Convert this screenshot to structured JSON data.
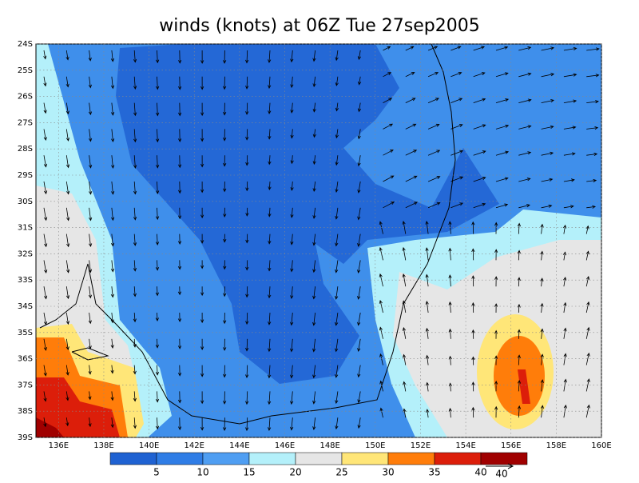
{
  "map": {
    "title": "winds (knots) at 06Z Tue 27sep2005",
    "lat_range": [
      -39,
      -24
    ],
    "lon_range": [
      135,
      160
    ],
    "lat_ticks": [
      {
        "value": -24,
        "label": "24S"
      },
      {
        "value": -25,
        "label": "25S"
      },
      {
        "value": -26,
        "label": "26S"
      },
      {
        "value": -27,
        "label": "27S"
      },
      {
        "value": -28,
        "label": "28S"
      },
      {
        "value": -29,
        "label": "29S"
      },
      {
        "value": -30,
        "label": "30S"
      },
      {
        "value": -31,
        "label": "31S"
      },
      {
        "value": -32,
        "label": "32S"
      },
      {
        "value": -33,
        "label": "33S"
      },
      {
        "value": -34,
        "label": "34S"
      },
      {
        "value": -35,
        "label": "35S"
      },
      {
        "value": -36,
        "label": "36S"
      },
      {
        "value": -37,
        "label": "37S"
      },
      {
        "value": -38,
        "label": "38S"
      },
      {
        "value": -39,
        "label": "39S"
      }
    ],
    "lon_ticks": [
      {
        "value": 136,
        "label": "136E"
      },
      {
        "value": 138,
        "label": "138E"
      },
      {
        "value": 140,
        "label": "140E"
      },
      {
        "value": 142,
        "label": "142E"
      },
      {
        "value": 144,
        "label": "144E"
      },
      {
        "value": 146,
        "label": "146E"
      },
      {
        "value": 148,
        "label": "148E"
      },
      {
        "value": 150,
        "label": "150E"
      },
      {
        "value": 152,
        "label": "152E"
      },
      {
        "value": 154,
        "label": "154E"
      },
      {
        "value": 156,
        "label": "156E"
      },
      {
        "value": 158,
        "label": "158E"
      },
      {
        "value": 160,
        "label": "160E"
      }
    ],
    "grid": true,
    "colorbar": {
      "levels": [
        5,
        10,
        15,
        20,
        25,
        30,
        35,
        40
      ],
      "colors": [
        "#1f62d2",
        "#2f7de6",
        "#4f9ef2",
        "#b4f0fa",
        "#e6e6e6",
        "#ffe678",
        "#ff7d0a",
        "#dc1e0a",
        "#a00000"
      ]
    },
    "reference_vector": 40
  }
}
